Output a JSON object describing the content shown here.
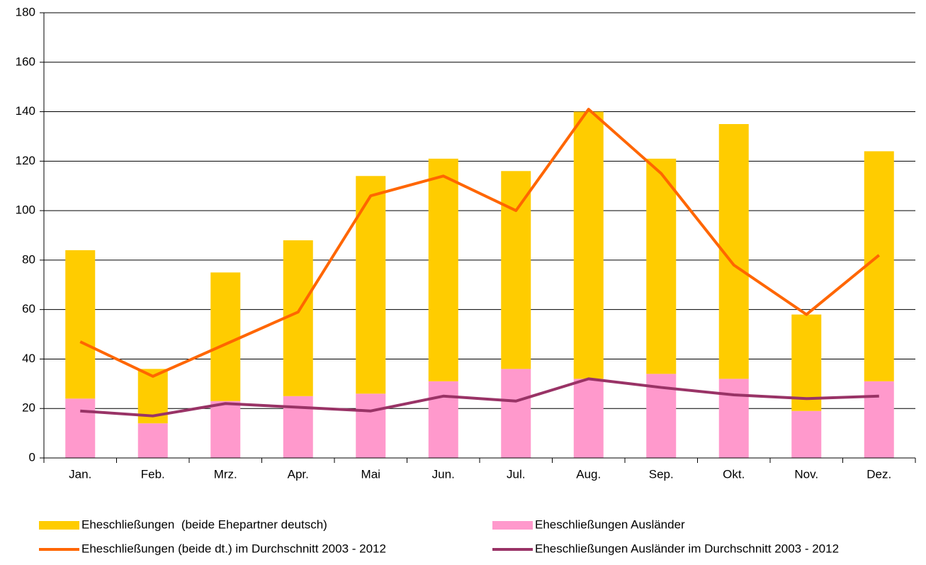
{
  "chart_data": {
    "type": "bar",
    "categories": [
      "Jan.",
      "Feb.",
      "Mrz.",
      "Apr.",
      "Mai",
      "Jun.",
      "Jul.",
      "Aug.",
      "Sep.",
      "Okt.",
      "Nov.",
      "Dez."
    ],
    "series": [
      {
        "name": "Eheschließungen  (beide Ehepartner deutsch)",
        "type": "bar",
        "color": "#ffcc00",
        "values": [
          60,
          22,
          52,
          63,
          88,
          90,
          80,
          108,
          87,
          103,
          39,
          93
        ]
      },
      {
        "name": "Eheschließungen Ausländer",
        "type": "bar",
        "color": "#ff99cc",
        "values": [
          24,
          14,
          23,
          25,
          26,
          31,
          36,
          32,
          34,
          32,
          19,
          31
        ]
      },
      {
        "name": "Eheschließungen (beide dt.) im Durchschnitt 2003 - 2012",
        "type": "line",
        "color": "#ff6600",
        "values": [
          47,
          33,
          46,
          59,
          106,
          114,
          100,
          141,
          115,
          78,
          58,
          82
        ]
      },
      {
        "name": "Eheschließungen Ausländer im Durchschnitt 2003 - 2012",
        "type": "line",
        "color": "#993366",
        "values": [
          19,
          17,
          22,
          20.5,
          19,
          25,
          23,
          32,
          28.5,
          25.5,
          24,
          25
        ]
      }
    ],
    "stacked": true,
    "ylim": [
      0,
      180
    ],
    "yticks": [
      0,
      20,
      40,
      60,
      80,
      100,
      120,
      140,
      160,
      180
    ],
    "grid": true
  }
}
